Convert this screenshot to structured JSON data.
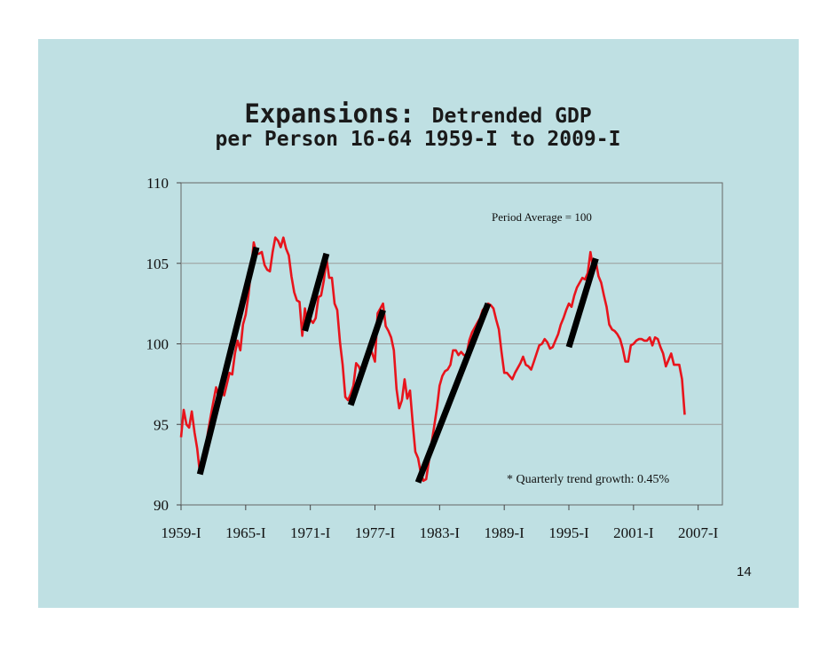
{
  "page_number": "14",
  "chart_data": {
    "type": "line",
    "title_line1_bold": "Expansions:",
    "title_line1_rest": "Detrended GDP",
    "title_line2": "per Person 16-64 1959-I to 2009-I",
    "xlabel": "",
    "ylabel": "",
    "ylim": [
      90,
      110
    ],
    "yticks": [
      "90",
      "95",
      "100",
      "105",
      "110"
    ],
    "xlim": [
      1959.0,
      2009.25
    ],
    "xticks": [
      {
        "x": 1959.0,
        "label": "1959-I"
      },
      {
        "x": 1965.0,
        "label": "1965-I"
      },
      {
        "x": 1971.0,
        "label": "1971-I"
      },
      {
        "x": 1977.0,
        "label": "1977-I"
      },
      {
        "x": 1983.0,
        "label": "1983-I"
      },
      {
        "x": 1989.0,
        "label": "1989-I"
      },
      {
        "x": 1995.0,
        "label": "1995-I"
      },
      {
        "x": 2001.0,
        "label": "2001-I"
      },
      {
        "x": 2007.0,
        "label": "2007-I"
      }
    ],
    "annotations": [
      "Period Average = 100",
      "* Quarterly trend growth: 0.45%"
    ],
    "colors": {
      "series": "#e8141c",
      "trend": "#000000",
      "grid": "#9a9a9a",
      "background": "#bfe0e3"
    },
    "series": [
      {
        "values": [
          [
            1959.0,
            94.2
          ],
          [
            1959.25,
            95.9
          ],
          [
            1959.5,
            95.0
          ],
          [
            1959.75,
            94.8
          ],
          [
            1960.0,
            95.8
          ],
          [
            1960.25,
            94.5
          ],
          [
            1960.5,
            93.5
          ],
          [
            1960.75,
            92.0
          ],
          [
            1961.0,
            92.3
          ],
          [
            1961.25,
            93.4
          ],
          [
            1961.5,
            94.5
          ],
          [
            1961.75,
            95.5
          ],
          [
            1962.0,
            96.4
          ],
          [
            1962.25,
            97.3
          ],
          [
            1962.5,
            96.7
          ],
          [
            1962.75,
            97.2
          ],
          [
            1963.0,
            96.8
          ],
          [
            1963.25,
            97.5
          ],
          [
            1963.5,
            98.2
          ],
          [
            1963.75,
            98.1
          ],
          [
            1964.0,
            99.4
          ],
          [
            1964.25,
            100.2
          ],
          [
            1964.5,
            99.6
          ],
          [
            1964.75,
            101.2
          ],
          [
            1965.0,
            101.8
          ],
          [
            1965.25,
            103.0
          ],
          [
            1965.5,
            104.6
          ],
          [
            1965.75,
            106.3
          ],
          [
            1966.0,
            105.6
          ],
          [
            1966.25,
            105.6
          ],
          [
            1966.5,
            105.7
          ],
          [
            1966.75,
            104.9
          ],
          [
            1967.0,
            104.6
          ],
          [
            1967.25,
            104.5
          ],
          [
            1967.5,
            105.7
          ],
          [
            1967.75,
            106.6
          ],
          [
            1968.0,
            106.4
          ],
          [
            1968.25,
            106.0
          ],
          [
            1968.5,
            106.6
          ],
          [
            1968.75,
            105.9
          ],
          [
            1969.0,
            105.5
          ],
          [
            1969.25,
            104.2
          ],
          [
            1969.5,
            103.2
          ],
          [
            1969.75,
            102.7
          ],
          [
            1970.0,
            102.6
          ],
          [
            1970.25,
            100.5
          ],
          [
            1970.5,
            102.2
          ],
          [
            1970.75,
            101.1
          ],
          [
            1971.0,
            101.5
          ],
          [
            1971.25,
            101.3
          ],
          [
            1971.5,
            101.6
          ],
          [
            1971.75,
            102.9
          ],
          [
            1972.0,
            103.0
          ],
          [
            1972.25,
            103.9
          ],
          [
            1972.5,
            105.3
          ],
          [
            1972.75,
            104.1
          ],
          [
            1973.0,
            104.1
          ],
          [
            1973.25,
            102.5
          ],
          [
            1973.5,
            102.1
          ],
          [
            1973.75,
            100.1
          ],
          [
            1974.0,
            98.7
          ],
          [
            1974.25,
            96.7
          ],
          [
            1974.5,
            96.5
          ],
          [
            1974.75,
            96.9
          ],
          [
            1975.0,
            97.4
          ],
          [
            1975.25,
            98.8
          ],
          [
            1975.5,
            98.6
          ],
          [
            1975.75,
            98.2
          ],
          [
            1976.0,
            98.3
          ],
          [
            1976.25,
            98.8
          ],
          [
            1976.5,
            99.8
          ],
          [
            1976.75,
            99.4
          ],
          [
            1977.0,
            98.9
          ],
          [
            1977.25,
            101.9
          ],
          [
            1977.5,
            102.2
          ],
          [
            1977.75,
            102.5
          ],
          [
            1978.0,
            101.1
          ],
          [
            1978.25,
            100.8
          ],
          [
            1978.5,
            100.4
          ],
          [
            1978.75,
            99.6
          ],
          [
            1979.0,
            97.2
          ],
          [
            1979.25,
            96.0
          ],
          [
            1979.5,
            96.5
          ],
          [
            1979.75,
            97.8
          ],
          [
            1980.0,
            96.6
          ],
          [
            1980.25,
            97.1
          ],
          [
            1980.5,
            95.1
          ],
          [
            1980.75,
            93.3
          ],
          [
            1981.0,
            92.9
          ],
          [
            1981.25,
            92.0
          ],
          [
            1981.5,
            91.5
          ],
          [
            1981.75,
            91.6
          ],
          [
            1982.0,
            92.7
          ],
          [
            1982.25,
            93.8
          ],
          [
            1982.5,
            94.9
          ],
          [
            1982.75,
            96.0
          ],
          [
            1983.0,
            97.4
          ],
          [
            1983.25,
            98.0
          ],
          [
            1983.5,
            98.3
          ],
          [
            1983.75,
            98.4
          ],
          [
            1984.0,
            98.7
          ],
          [
            1984.25,
            99.6
          ],
          [
            1984.5,
            99.6
          ],
          [
            1984.75,
            99.3
          ],
          [
            1985.0,
            99.5
          ],
          [
            1985.25,
            99.3
          ],
          [
            1985.5,
            99.3
          ],
          [
            1985.75,
            100.2
          ],
          [
            1986.0,
            100.7
          ],
          [
            1986.25,
            101.0
          ],
          [
            1986.5,
            101.3
          ],
          [
            1986.75,
            101.6
          ],
          [
            1987.0,
            102.1
          ],
          [
            1987.25,
            102.3
          ],
          [
            1987.5,
            102.5
          ],
          [
            1987.75,
            102.4
          ],
          [
            1988.0,
            102.2
          ],
          [
            1988.25,
            101.5
          ],
          [
            1988.5,
            100.9
          ],
          [
            1988.75,
            99.5
          ],
          [
            1989.0,
            98.2
          ],
          [
            1989.25,
            98.2
          ],
          [
            1989.5,
            98.0
          ],
          [
            1989.75,
            97.8
          ],
          [
            1990.0,
            98.2
          ],
          [
            1990.25,
            98.5
          ],
          [
            1990.5,
            98.8
          ],
          [
            1990.75,
            99.2
          ],
          [
            1991.0,
            98.7
          ],
          [
            1991.25,
            98.6
          ],
          [
            1991.5,
            98.4
          ],
          [
            1991.75,
            98.9
          ],
          [
            1992.0,
            99.4
          ],
          [
            1992.25,
            99.9
          ],
          [
            1992.5,
            100.0
          ],
          [
            1992.75,
            100.3
          ],
          [
            1993.0,
            100.1
          ],
          [
            1993.25,
            99.7
          ],
          [
            1993.5,
            99.8
          ],
          [
            1993.75,
            100.2
          ],
          [
            1994.0,
            100.6
          ],
          [
            1994.25,
            101.2
          ],
          [
            1994.5,
            101.6
          ],
          [
            1994.75,
            102.1
          ],
          [
            1995.0,
            102.5
          ],
          [
            1995.25,
            102.3
          ],
          [
            1995.5,
            103.0
          ],
          [
            1995.75,
            103.5
          ],
          [
            1996.0,
            103.8
          ],
          [
            1996.25,
            104.1
          ],
          [
            1996.5,
            104.0
          ],
          [
            1996.75,
            104.4
          ],
          [
            1997.0,
            105.7
          ],
          [
            1997.25,
            104.7
          ],
          [
            1997.5,
            105.1
          ],
          [
            1997.75,
            104.2
          ],
          [
            1998.0,
            103.8
          ],
          [
            1998.25,
            103.0
          ],
          [
            1998.5,
            102.3
          ],
          [
            1998.75,
            101.2
          ],
          [
            1999.0,
            100.9
          ],
          [
            1999.25,
            100.8
          ],
          [
            1999.5,
            100.6
          ],
          [
            1999.75,
            100.3
          ],
          [
            2000.0,
            99.7
          ],
          [
            2000.25,
            98.9
          ],
          [
            2000.5,
            98.9
          ],
          [
            2000.75,
            99.9
          ],
          [
            2001.0,
            100.0
          ],
          [
            2001.25,
            100.2
          ],
          [
            2001.5,
            100.3
          ],
          [
            2001.75,
            100.3
          ],
          [
            2002.0,
            100.2
          ],
          [
            2002.25,
            100.2
          ],
          [
            2002.5,
            100.4
          ],
          [
            2002.75,
            99.9
          ],
          [
            2003.0,
            100.4
          ],
          [
            2003.25,
            100.3
          ],
          [
            2003.5,
            99.8
          ],
          [
            2003.75,
            99.4
          ],
          [
            2004.0,
            98.6
          ],
          [
            2004.25,
            99.0
          ],
          [
            2004.5,
            99.4
          ],
          [
            2004.75,
            98.7
          ],
          [
            2005.0,
            98.7
          ],
          [
            2005.25,
            98.7
          ],
          [
            2005.5,
            97.8
          ],
          [
            2005.75,
            95.6
          ]
        ]
      }
    ],
    "trend_lines": [
      {
        "x1": 1960.75,
        "y1": 91.9,
        "x2": 1966.0,
        "y2": 106.0
      },
      {
        "x1": 1970.5,
        "y1": 100.8,
        "x2": 1972.5,
        "y2": 105.6
      },
      {
        "x1": 1974.75,
        "y1": 96.2,
        "x2": 1977.75,
        "y2": 102.1
      },
      {
        "x1": 1981.0,
        "y1": 91.4,
        "x2": 1987.5,
        "y2": 102.5
      },
      {
        "x1": 1995.0,
        "y1": 99.8,
        "x2": 1997.5,
        "y2": 105.3
      }
    ]
  }
}
